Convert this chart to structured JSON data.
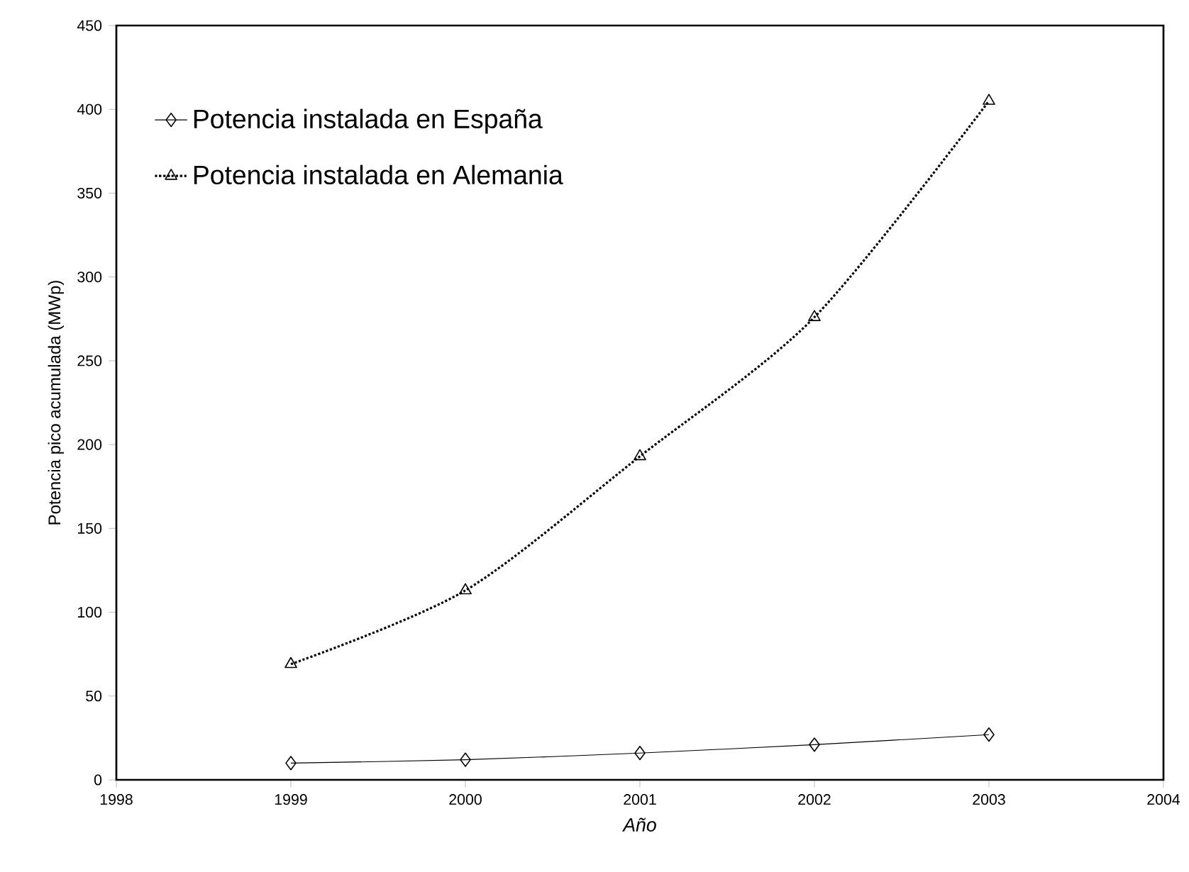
{
  "chart_data": {
    "type": "line",
    "xlabel": "Año",
    "ylabel": "Potencia pico acumulada (MWp)",
    "x": [
      1999,
      2000,
      2001,
      2002,
      2003
    ],
    "series": [
      {
        "name": "Potencia instalada en España",
        "color": "#000000",
        "values": [
          10,
          12,
          16,
          21,
          27
        ],
        "marker": "diamond",
        "line_style": "solid"
      },
      {
        "name": "Potencia instalada en Alemania",
        "color": "#000000",
        "values": [
          69,
          113,
          193,
          276,
          405
        ],
        "marker": "triangle",
        "line_style": "dotted"
      }
    ],
    "xlim": [
      1998,
      2004
    ],
    "xticks": [
      1998,
      1999,
      2000,
      2001,
      2002,
      2003,
      2004
    ],
    "ylim": [
      0,
      450
    ],
    "yticks": [
      0,
      50,
      100,
      150,
      200,
      250,
      300,
      350,
      400,
      450
    ],
    "grid": false,
    "legend": "top left"
  }
}
